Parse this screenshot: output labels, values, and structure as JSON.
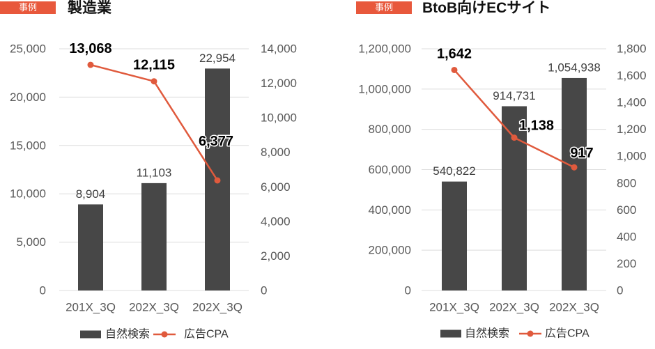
{
  "chart_data": [
    {
      "tag": "事例",
      "title": "製造業",
      "type": "bar",
      "categories": [
        "201X_3Q",
        "202X_3Q",
        "202X_3Q"
      ],
      "series": [
        {
          "name": "自然検索",
          "type": "bar",
          "y_axis": "primary",
          "color": "#474747",
          "values": [
            8904,
            11103,
            22954
          ]
        },
        {
          "name": "広告CPA",
          "type": "line",
          "y_axis": "secondary",
          "color": "#e05a3d",
          "values": [
            13068,
            12115,
            6377
          ]
        }
      ],
      "ylim": [
        0,
        25000
      ],
      "yticks": [
        0,
        5000,
        10000,
        15000,
        20000,
        25000
      ],
      "y2lim": [
        0,
        14000
      ],
      "y2ticks": [
        0,
        2000,
        4000,
        6000,
        8000,
        10000,
        12000,
        14000
      ],
      "grid": true,
      "legend": "bottom",
      "data_labels": true
    },
    {
      "tag": "事例",
      "title": "BtoB向けECサイト",
      "type": "bar",
      "categories": [
        "201X_3Q",
        "202X_3Q",
        "202X_3Q"
      ],
      "series": [
        {
          "name": "自然検索",
          "type": "bar",
          "y_axis": "primary",
          "color": "#474747",
          "values": [
            540822,
            914731,
            1054938
          ]
        },
        {
          "name": "広告CPA",
          "type": "line",
          "y_axis": "secondary",
          "color": "#e05a3d",
          "values": [
            1642,
            1138,
            917
          ]
        }
      ],
      "ylim": [
        0,
        1200000
      ],
      "yticks": [
        0,
        200000,
        400000,
        600000,
        800000,
        1000000,
        1200000
      ],
      "y2lim": [
        0,
        1800
      ],
      "y2ticks": [
        0,
        200,
        400,
        600,
        800,
        1000,
        1200,
        1400,
        1600,
        1800
      ],
      "grid": true,
      "legend": "bottom",
      "data_labels": true
    }
  ]
}
